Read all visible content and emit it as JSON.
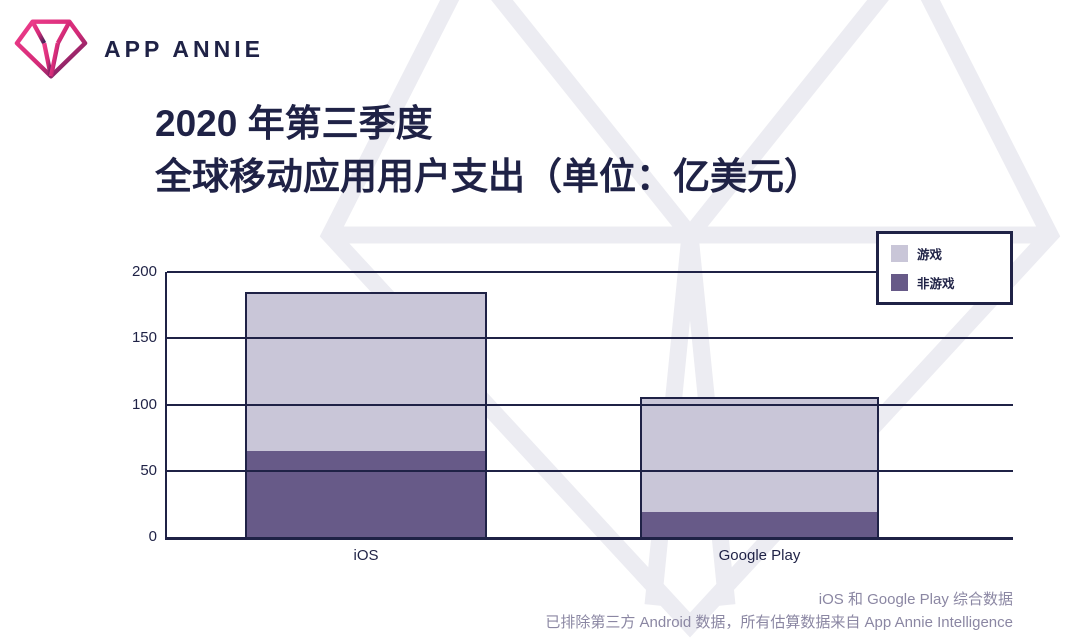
{
  "header": {
    "brand": "APP ANNIE"
  },
  "title": {
    "line1": "2020 年第三季度",
    "line2": "全球移动应用用户支出（单位：亿美元）"
  },
  "legend": {
    "items": [
      {
        "label": "游戏",
        "color": "#c9c6d8"
      },
      {
        "label": "非游戏",
        "color": "#675a88"
      }
    ]
  },
  "chart_data": {
    "type": "bar",
    "stacked": true,
    "title": "2020 年第三季度 全球移动应用用户支出（单位：亿美元）",
    "categories": [
      "iOS",
      "Google Play"
    ],
    "series": [
      {
        "name": "非游戏",
        "color": "#675a88",
        "values": [
          65,
          19
        ]
      },
      {
        "name": "游戏",
        "color": "#c9c6d8",
        "values": [
          120,
          87
        ]
      }
    ],
    "totals": [
      185,
      106
    ],
    "xlabel": "",
    "ylabel": "",
    "ylim": [
      0,
      200
    ],
    "yticks": [
      0,
      50,
      100,
      150,
      200
    ],
    "grid": true,
    "legend_position": "top-right",
    "axis_color": "#1f2246"
  },
  "footer": {
    "line1": "iOS 和 Google Play 综合数据",
    "line2": "已排除第三方 Android 数据，所有估算数据来自 App Annie Intelligence"
  }
}
